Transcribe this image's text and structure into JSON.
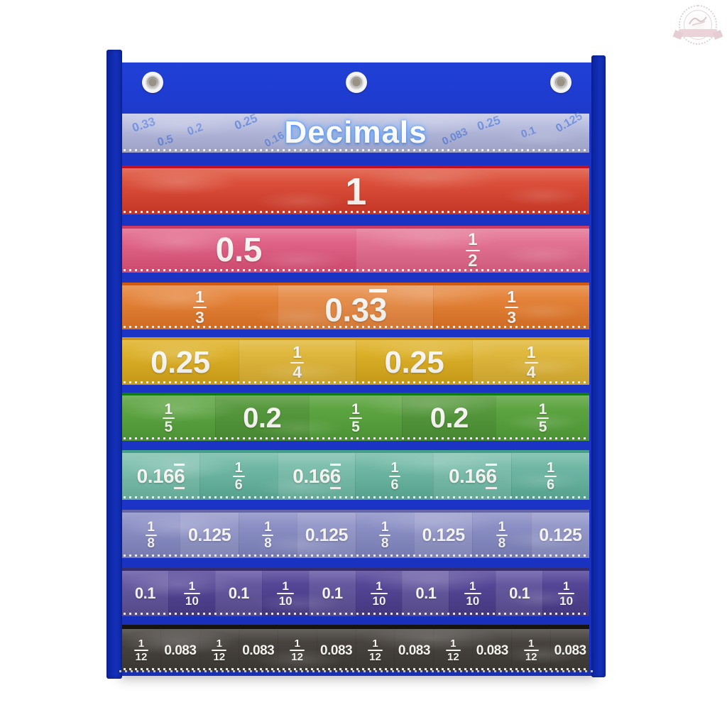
{
  "chart": {
    "title": "Decimals",
    "panel_color": "#1c34c6",
    "flap_color": "#0d24a0",
    "header_card_color": "#b4b9dc",
    "title_color": "#ffffff",
    "title_glow_color": "#69a8ff",
    "scatter_numbers": [
      "0.33",
      "0.2",
      "0.25",
      "0.5",
      "0.16",
      "0.25",
      "0.083",
      "0.1",
      "0.125"
    ],
    "rows": [
      {
        "name": "whole",
        "alt": "none",
        "colors": {
          "top": "#e05a43",
          "bottom": "#d03827",
          "edge": "#c10f22"
        },
        "cells": [
          {
            "type": "decimal",
            "text": "1"
          }
        ]
      },
      {
        "name": "halves",
        "alt": "even-light",
        "colors": {
          "top": "#e36d8f",
          "bottom": "#d84e74",
          "edge": "#ce3a66"
        },
        "cells": [
          {
            "type": "decimal",
            "text": "0.5"
          },
          {
            "type": "fraction",
            "num": "1",
            "den": "2"
          }
        ]
      },
      {
        "name": "thirds",
        "alt": "even-light",
        "colors": {
          "top": "#e78a42",
          "bottom": "#dc7124",
          "edge": "#d25a10"
        },
        "cells": [
          {
            "type": "fraction",
            "num": "1",
            "den": "3"
          },
          {
            "type": "decimal",
            "text": "0.3",
            "repeat": "3"
          },
          {
            "type": "fraction",
            "num": "1",
            "den": "3"
          }
        ]
      },
      {
        "name": "fourths",
        "alt": "even-light",
        "colors": {
          "top": "#e0b52e",
          "bottom": "#d1a219",
          "edge": "#c8981e"
        },
        "cells": [
          {
            "type": "decimal",
            "text": "0.25"
          },
          {
            "type": "fraction",
            "num": "1",
            "den": "4"
          },
          {
            "type": "decimal",
            "text": "0.25"
          },
          {
            "type": "fraction",
            "num": "1",
            "den": "4"
          }
        ]
      },
      {
        "name": "fifths",
        "alt": "even-dark",
        "colors": {
          "top": "#63a746",
          "bottom": "#4f9c37",
          "edge": "#117a11"
        },
        "cells": [
          {
            "type": "fraction",
            "num": "1",
            "den": "5"
          },
          {
            "type": "decimal",
            "text": "0.2"
          },
          {
            "type": "fraction",
            "num": "1",
            "den": "5"
          },
          {
            "type": "decimal",
            "text": "0.2"
          },
          {
            "type": "fraction",
            "num": "1",
            "den": "5"
          }
        ]
      },
      {
        "name": "sixths",
        "alt": "odd-light",
        "colors": {
          "top": "#79bdaa",
          "bottom": "#5aab96",
          "edge": "#44a08b"
        },
        "cells": [
          {
            "type": "decimal",
            "text": "0.16",
            "repeat": "6",
            "repeat_underline": true
          },
          {
            "type": "fraction",
            "num": "1",
            "den": "6"
          },
          {
            "type": "decimal",
            "text": "0.16",
            "repeat": "6",
            "repeat_underline": true
          },
          {
            "type": "fraction",
            "num": "1",
            "den": "6"
          },
          {
            "type": "decimal",
            "text": "0.16",
            "repeat": "6",
            "repeat_underline": true
          },
          {
            "type": "fraction",
            "num": "1",
            "den": "6"
          }
        ]
      },
      {
        "name": "eighths",
        "alt": "even-light",
        "colors": {
          "top": "#9094c8",
          "bottom": "#7c81ba",
          "edge": "#6468a8"
        },
        "cells": [
          {
            "type": "fraction",
            "num": "1",
            "den": "8"
          },
          {
            "type": "decimal",
            "text": "0.125"
          },
          {
            "type": "fraction",
            "num": "1",
            "den": "8"
          },
          {
            "type": "decimal",
            "text": "0.125"
          },
          {
            "type": "fraction",
            "num": "1",
            "den": "8"
          },
          {
            "type": "decimal",
            "text": "0.125"
          },
          {
            "type": "fraction",
            "num": "1",
            "den": "8"
          },
          {
            "type": "decimal",
            "text": "0.125"
          }
        ]
      },
      {
        "name": "tenths",
        "alt": "odd-light",
        "colors": {
          "top": "#5a4b9d",
          "bottom": "#483a85",
          "edge": "#362b6b"
        },
        "cells": [
          {
            "type": "decimal",
            "text": "0.1"
          },
          {
            "type": "fraction",
            "num": "1",
            "den": "10"
          },
          {
            "type": "decimal",
            "text": "0.1"
          },
          {
            "type": "fraction",
            "num": "1",
            "den": "10"
          },
          {
            "type": "decimal",
            "text": "0.1"
          },
          {
            "type": "fraction",
            "num": "1",
            "den": "10"
          },
          {
            "type": "decimal",
            "text": "0.1"
          },
          {
            "type": "fraction",
            "num": "1",
            "den": "10"
          },
          {
            "type": "decimal",
            "text": "0.1"
          },
          {
            "type": "fraction",
            "num": "1",
            "den": "10"
          }
        ]
      },
      {
        "name": "twelfths",
        "alt": "none",
        "colors": {
          "top": "#4c4743",
          "bottom": "#3d3935",
          "edge": "#161311"
        },
        "cells": [
          {
            "type": "fraction",
            "num": "1",
            "den": "12"
          },
          {
            "type": "decimal",
            "text": "0.083"
          },
          {
            "type": "fraction",
            "num": "1",
            "den": "12"
          },
          {
            "type": "decimal",
            "text": "0.083"
          },
          {
            "type": "fraction",
            "num": "1",
            "den": "12"
          },
          {
            "type": "decimal",
            "text": "0.083"
          },
          {
            "type": "fraction",
            "num": "1",
            "den": "12"
          },
          {
            "type": "decimal",
            "text": "0.083"
          },
          {
            "type": "fraction",
            "num": "1",
            "den": "12"
          },
          {
            "type": "decimal",
            "text": "0.083"
          },
          {
            "type": "fraction",
            "num": "1",
            "den": "12"
          },
          {
            "type": "decimal",
            "text": "0.083"
          }
        ]
      }
    ]
  }
}
